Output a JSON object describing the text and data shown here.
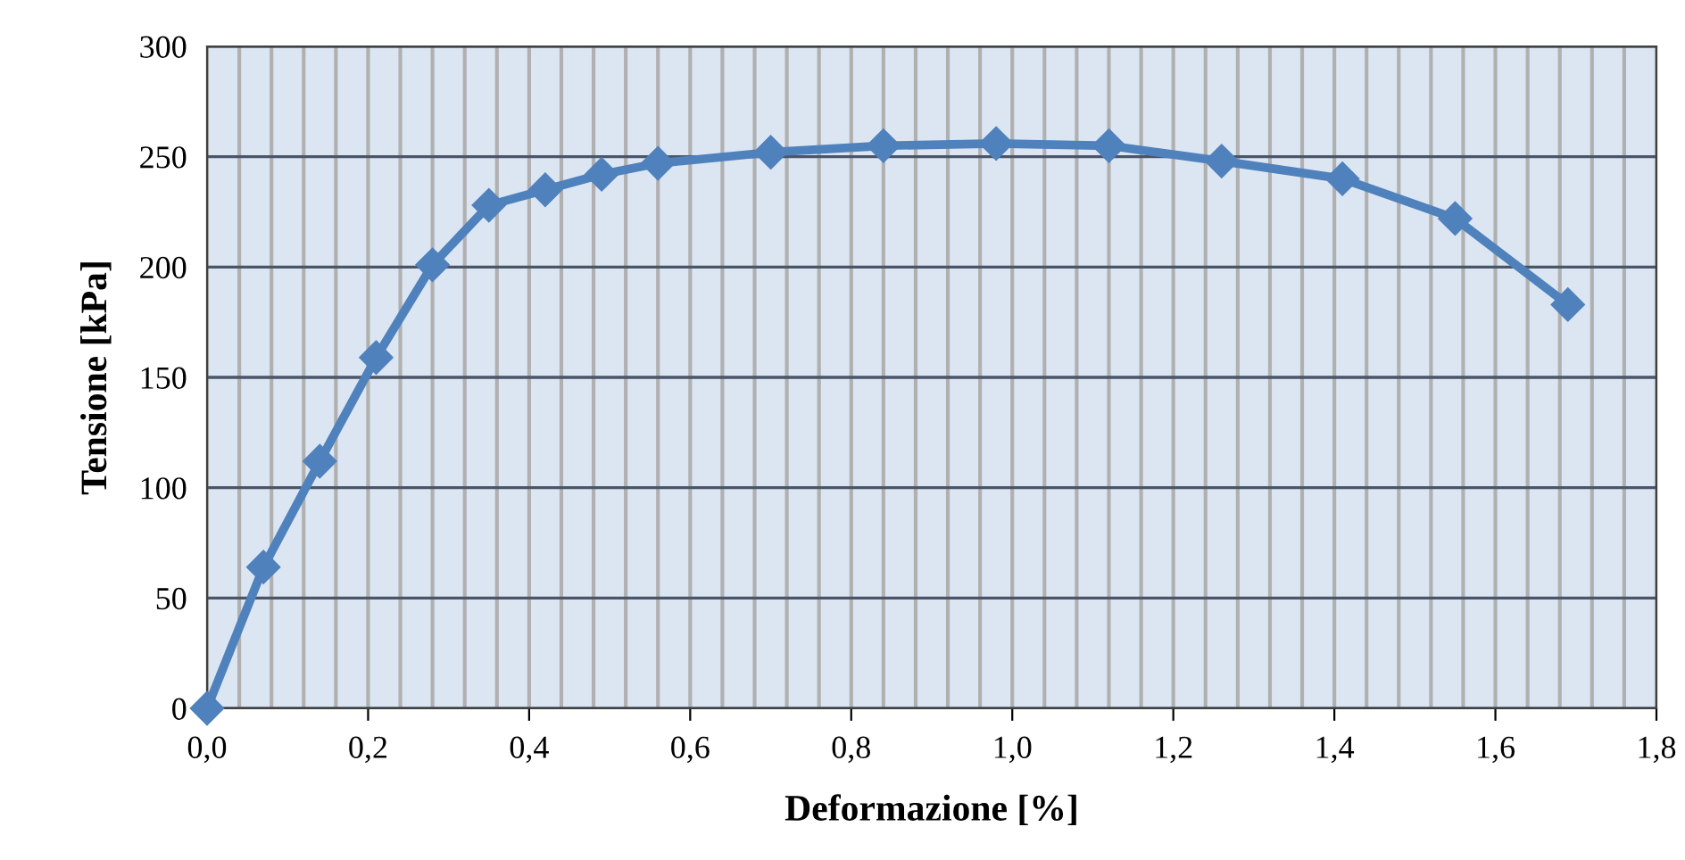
{
  "chart_data": {
    "type": "line",
    "xlabel": "Deformazione [%]",
    "ylabel": "Tensione [kPa]",
    "x": [
      0,
      0.07,
      0.14,
      0.21,
      0.28,
      0.35,
      0.42,
      0.49,
      0.56,
      0.7,
      0.84,
      0.98,
      1.12,
      1.26,
      1.41,
      1.55,
      1.69
    ],
    "series": [
      {
        "color": "#4f81bd",
        "values": [
          0,
          64,
          112,
          159,
          201,
          228,
          235,
          242,
          247,
          252,
          255,
          256,
          255,
          248,
          240,
          222,
          183
        ]
      }
    ],
    "xlim": [
      0,
      1.8
    ],
    "ylim": [
      0,
      300
    ],
    "xticks": [
      {
        "value": 0,
        "label": "0,0"
      },
      {
        "value": 0.04,
        "label": null
      },
      {
        "value": 0.08,
        "label": null
      },
      {
        "value": 0.12,
        "label": null
      },
      {
        "value": 0.16,
        "label": null
      },
      {
        "value": 0.2,
        "label": "0,2"
      },
      {
        "value": 0.24,
        "label": null
      },
      {
        "value": 0.28,
        "label": null
      },
      {
        "value": 0.32,
        "label": null
      },
      {
        "value": 0.36,
        "label": null
      },
      {
        "value": 0.4,
        "label": "0,4"
      },
      {
        "value": 0.44,
        "label": null
      },
      {
        "value": 0.48,
        "label": null
      },
      {
        "value": 0.52,
        "label": null
      },
      {
        "value": 0.56,
        "label": null
      },
      {
        "value": 0.6,
        "label": "0,6"
      },
      {
        "value": 0.64,
        "label": null
      },
      {
        "value": 0.68,
        "label": null
      },
      {
        "value": 0.72,
        "label": null
      },
      {
        "value": 0.76,
        "label": null
      },
      {
        "value": 0.8,
        "label": "0,8"
      },
      {
        "value": 0.84,
        "label": null
      },
      {
        "value": 0.88,
        "label": null
      },
      {
        "value": 0.92,
        "label": null
      },
      {
        "value": 0.96,
        "label": null
      },
      {
        "value": 1.0,
        "label": "1,0"
      },
      {
        "value": 1.04,
        "label": null
      },
      {
        "value": 1.08,
        "label": null
      },
      {
        "value": 1.12,
        "label": null
      },
      {
        "value": 1.16,
        "label": null
      },
      {
        "value": 1.2,
        "label": "1,2"
      },
      {
        "value": 1.24,
        "label": null
      },
      {
        "value": 1.28,
        "label": null
      },
      {
        "value": 1.32,
        "label": null
      },
      {
        "value": 1.36,
        "label": null
      },
      {
        "value": 1.4,
        "label": "1,4"
      },
      {
        "value": 1.44,
        "label": null
      },
      {
        "value": 1.48,
        "label": null
      },
      {
        "value": 1.52,
        "label": null
      },
      {
        "value": 1.56,
        "label": null
      },
      {
        "value": 1.6,
        "label": "1,6"
      },
      {
        "value": 1.64,
        "label": null
      },
      {
        "value": 1.68,
        "label": null
      },
      {
        "value": 1.72,
        "label": null
      },
      {
        "value": 1.76,
        "label": null
      },
      {
        "value": 1.8,
        "label": "1,8"
      }
    ],
    "yticks": [
      0,
      50,
      100,
      150,
      200,
      250,
      300
    ],
    "grid": true,
    "legend": false,
    "marker": "diamond",
    "line_style": "solid"
  }
}
